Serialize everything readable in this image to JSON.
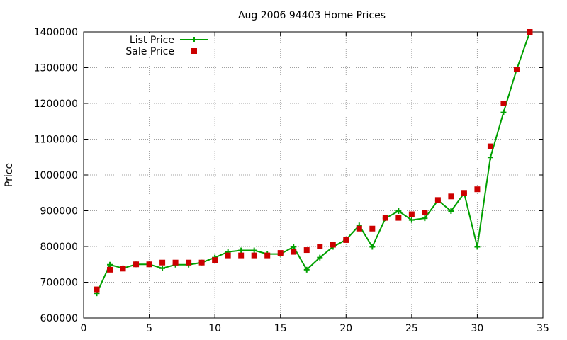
{
  "chart_data": {
    "type": "line",
    "title": "Aug 2006 94403 Home Prices",
    "xlabel": "",
    "ylabel": "Price",
    "xlim": [
      0,
      35
    ],
    "ylim": [
      600000,
      1400000
    ],
    "xticks": [
      0,
      5,
      10,
      15,
      20,
      25,
      30,
      35
    ],
    "yticks": [
      600000,
      700000,
      800000,
      900000,
      1000000,
      1100000,
      1200000,
      1300000,
      1400000
    ],
    "grid": true,
    "legend": "top-left",
    "x": [
      1,
      2,
      3,
      4,
      5,
      6,
      7,
      8,
      9,
      10,
      11,
      12,
      13,
      14,
      15,
      16,
      17,
      18,
      19,
      20,
      21,
      22,
      23,
      24,
      25,
      26,
      27,
      28,
      29,
      30,
      31,
      32,
      33,
      34
    ],
    "series": [
      {
        "name": "List Price",
        "style": "line with cross markers",
        "color": "#00a000",
        "values": [
          669000,
          749000,
          739000,
          750000,
          750000,
          739000,
          749000,
          749000,
          755000,
          769000,
          785000,
          789000,
          789000,
          779000,
          779000,
          799000,
          735000,
          769000,
          799000,
          819000,
          859000,
          799000,
          879000,
          899000,
          874000,
          879000,
          929000,
          899000,
          949000,
          799000,
          1049000,
          1175000,
          1295000,
          1399000
        ]
      },
      {
        "name": "Sale Price",
        "style": "square markers",
        "color": "#cc0000",
        "values": [
          680000,
          735000,
          738000,
          750000,
          750000,
          755000,
          755000,
          755000,
          755000,
          762000,
          775000,
          775000,
          775000,
          775000,
          782000,
          785000,
          790000,
          800000,
          805000,
          818000,
          850000,
          850000,
          880000,
          880000,
          890000,
          895000,
          930000,
          940000,
          950000,
          960000,
          1080000,
          1200000,
          1295000,
          1400000
        ]
      }
    ]
  }
}
